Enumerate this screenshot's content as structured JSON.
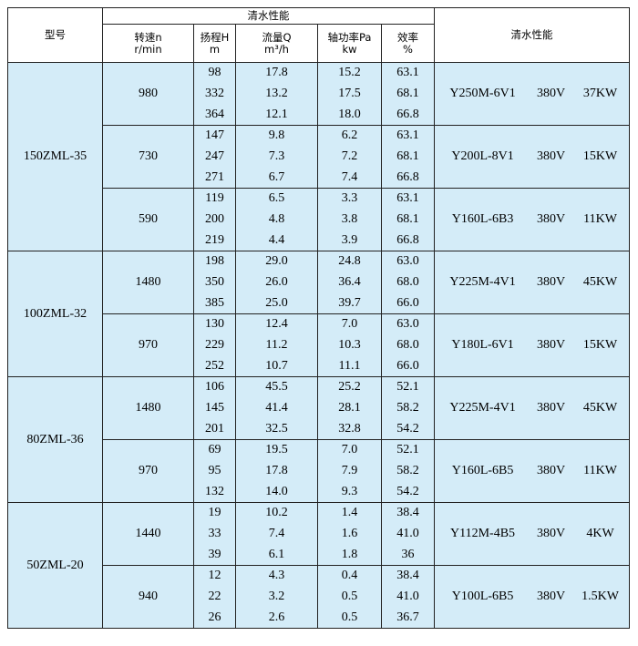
{
  "header": {
    "model": "型号",
    "group": "清水性能",
    "columns": [
      [
        "转速n",
        "r/min"
      ],
      [
        "扬程H",
        "m"
      ],
      [
        "流量Q",
        "m³/h"
      ],
      [
        "轴功率Pa",
        "kw"
      ],
      [
        "效率",
        "%"
      ]
    ],
    "motor": "清水性能"
  },
  "models": [
    {
      "name": "150ZML-35",
      "speeds": [
        {
          "speed": "980",
          "motor": [
            "Y250M-6V1",
            "380V",
            "37KW"
          ],
          "rows": [
            [
              "98",
              "17.8",
              "15.2",
              "63.1"
            ],
            [
              "332",
              "13.2",
              "17.5",
              "68.1"
            ],
            [
              "364",
              "12.1",
              "18.0",
              "66.8"
            ]
          ]
        },
        {
          "speed": "730",
          "motor": [
            "Y200L-8V1",
            "380V",
            "15KW"
          ],
          "rows": [
            [
              "147",
              "9.8",
              "6.2",
              "63.1"
            ],
            [
              "247",
              "7.3",
              "7.2",
              "68.1"
            ],
            [
              "271",
              "6.7",
              "7.4",
              "66.8"
            ]
          ]
        },
        {
          "speed": "590",
          "motor": [
            "Y160L-6B3",
            "380V",
            "11KW"
          ],
          "rows": [
            [
              "119",
              "6.5",
              "3.3",
              "63.1"
            ],
            [
              "200",
              "4.8",
              "3.8",
              "68.1"
            ],
            [
              "219",
              "4.4",
              "3.9",
              "66.8"
            ]
          ]
        }
      ]
    },
    {
      "name": "100ZML-32",
      "speeds": [
        {
          "speed": "1480",
          "motor": [
            "Y225M-4V1",
            "380V",
            "45KW"
          ],
          "rows": [
            [
              "198",
              "29.0",
              "24.8",
              "63.0"
            ],
            [
              "350",
              "26.0",
              "36.4",
              "68.0"
            ],
            [
              "385",
              "25.0",
              "39.7",
              "66.0"
            ]
          ]
        },
        {
          "speed": "970",
          "motor": [
            "Y180L-6V1",
            "380V",
            "15KW"
          ],
          "rows": [
            [
              "130",
              "12.4",
              "7.0",
              "63.0"
            ],
            [
              "229",
              "11.2",
              "10.3",
              "68.0"
            ],
            [
              "252",
              "10.7",
              "11.1",
              "66.0"
            ]
          ]
        }
      ]
    },
    {
      "name": "80ZML-36",
      "speeds": [
        {
          "speed": "1480",
          "motor": [
            "Y225M-4V1",
            "380V",
            "45KW"
          ],
          "rows": [
            [
              "106",
              "45.5",
              "25.2",
              "52.1"
            ],
            [
              "145",
              "41.4",
              "28.1",
              "58.2"
            ],
            [
              "201",
              "32.5",
              "32.8",
              "54.2"
            ]
          ]
        },
        {
          "speed": "970",
          "motor": [
            "Y160L-6B5",
            "380V",
            "11KW"
          ],
          "rows": [
            [
              "69",
              "19.5",
              "7.0",
              "52.1"
            ],
            [
              "95",
              "17.8",
              "7.9",
              "58.2"
            ],
            [
              "132",
              "14.0",
              "9.3",
              "54.2"
            ]
          ]
        }
      ]
    },
    {
      "name": "50ZML-20",
      "speeds": [
        {
          "speed": "1440",
          "motor": [
            "Y112M-4B5",
            "380V",
            "4KW"
          ],
          "rows": [
            [
              "19",
              "10.2",
              "1.4",
              "38.4"
            ],
            [
              "33",
              "7.4",
              "1.6",
              "41.0"
            ],
            [
              "39",
              "6.1",
              "1.8",
              "36"
            ]
          ]
        },
        {
          "speed": "940",
          "motor": [
            "Y100L-6B5",
            "380V",
            "1.5KW"
          ],
          "rows": [
            [
              "12",
              "4.3",
              "0.4",
              "38.4"
            ],
            [
              "22",
              "3.2",
              "0.5",
              "41.0"
            ],
            [
              "26",
              "2.6",
              "0.5",
              "36.7"
            ]
          ]
        }
      ]
    }
  ]
}
